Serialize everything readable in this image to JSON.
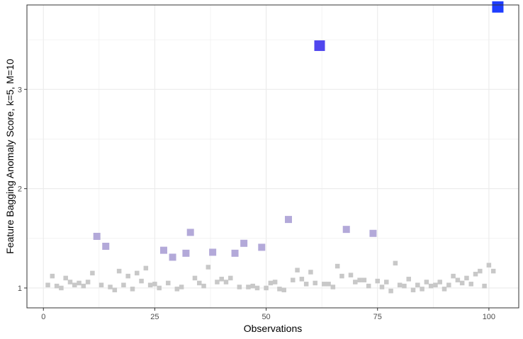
{
  "chart_data": {
    "type": "scatter",
    "title": "",
    "xlabel": "Observations",
    "ylabel": "Feature Bagging Anomaly Score, k=5, M=10",
    "xlim": [
      -3.7,
      106.7
    ],
    "ylim": [
      0.8,
      3.85
    ],
    "x_ticks": [
      0,
      25,
      50,
      75,
      100
    ],
    "y_ticks": [
      1,
      2,
      3
    ],
    "grid": true,
    "legend": "none",
    "point_shape": "square",
    "colors": {
      "normal": "#c8c8c8",
      "moderate": "#b3a9d9",
      "high": "#5046ee",
      "extreme": "#1e3dff",
      "panel_border": "#333333",
      "grid": "#ebebeb"
    },
    "points": {
      "x": [
        1,
        2,
        3,
        4,
        5,
        6,
        7,
        8,
        9,
        10,
        11,
        12,
        13,
        14,
        15,
        16,
        17,
        18,
        19,
        20,
        21,
        22,
        23,
        24,
        25,
        26,
        27,
        28,
        29,
        30,
        31,
        32,
        33,
        34,
        35,
        36,
        37,
        38,
        39,
        40,
        41,
        42,
        43,
        44,
        45,
        46,
        47,
        48,
        49,
        50,
        51,
        52,
        53,
        54,
        55,
        56,
        57,
        58,
        59,
        60,
        61,
        62,
        63,
        64,
        65,
        66,
        67,
        68,
        69,
        70,
        71,
        72,
        73,
        74,
        75,
        76,
        77,
        78,
        79,
        80,
        81,
        82,
        83,
        84,
        85,
        86,
        87,
        88,
        89,
        90,
        91,
        92,
        93,
        94,
        95,
        96,
        97,
        98,
        99,
        100,
        101,
        102
      ],
      "y": [
        1.03,
        1.12,
        1.02,
        1.0,
        1.1,
        1.06,
        1.03,
        1.05,
        1.02,
        1.06,
        1.15,
        1.52,
        1.03,
        1.42,
        1.01,
        0.98,
        1.17,
        1.03,
        1.12,
        0.99,
        1.15,
        1.07,
        1.2,
        1.03,
        1.04,
        1.0,
        1.38,
        1.05,
        1.31,
        0.99,
        1.01,
        1.35,
        1.56,
        1.1,
        1.05,
        1.02,
        1.21,
        1.36,
        1.06,
        1.09,
        1.06,
        1.1,
        1.35,
        1.01,
        1.45,
        1.01,
        1.02,
        1.0,
        1.41,
        1.0,
        1.05,
        1.06,
        0.99,
        0.98,
        1.69,
        1.08,
        1.18,
        1.09,
        1.04,
        1.16,
        1.05,
        3.44,
        1.04,
        1.04,
        1.01,
        1.22,
        1.12,
        1.59,
        1.13,
        1.06,
        1.08,
        1.08,
        1.02,
        1.55,
        1.07,
        1.01,
        1.06,
        0.97,
        1.25,
        1.03,
        1.02,
        1.09,
        0.98,
        1.03,
        0.99,
        1.06,
        1.02,
        1.03,
        1.06,
        0.99,
        1.03,
        1.12,
        1.08,
        1.05,
        1.1,
        1.04,
        1.14,
        1.17,
        1.02,
        1.23,
        1.17,
        3.83
      ]
    }
  }
}
